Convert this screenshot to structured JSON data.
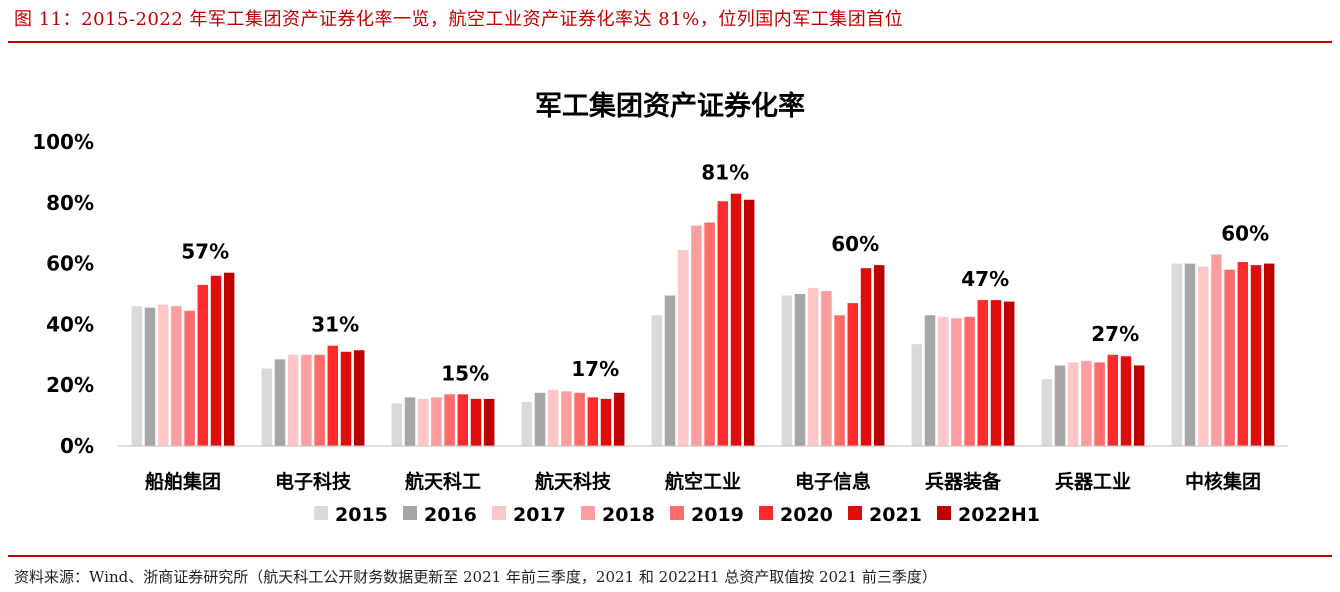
{
  "figure": {
    "title": "图 11：2015-2022 年军工集团资产证券化率一览，航空工业资产证券化率达 81%，位列国内军工集团首位",
    "source": "资料来源：Wind、浙商证券研究所（航天科工公开财务数据更新至 2021 年前三季度，2021 和 2022H1 总资产取值按 2021 前三季度）"
  },
  "chart_data": {
    "type": "bar",
    "title": "军工集团资产证券化率",
    "xlabel": "",
    "ylabel": "",
    "ylim": [
      0,
      100
    ],
    "yticks": [
      "0%",
      "20%",
      "40%",
      "60%",
      "80%",
      "100%"
    ],
    "grid": false,
    "legend_position": "bottom",
    "categories": [
      "船舶集团",
      "电子科技",
      "航天科工",
      "航天科技",
      "航空工业",
      "电子信息",
      "兵器装备",
      "兵器工业",
      "中核集团"
    ],
    "series": [
      {
        "name": "2015",
        "color": "#d9d9d9",
        "values": [
          46,
          25.5,
          14,
          14.5,
          43,
          49.5,
          33.5,
          22,
          60
        ]
      },
      {
        "name": "2016",
        "color": "#a6a6a6",
        "values": [
          45.5,
          28.5,
          16,
          17.5,
          49.5,
          50,
          43,
          26.5,
          60
        ]
      },
      {
        "name": "2017",
        "color": "#ffc7c7",
        "values": [
          46.5,
          30,
          15.5,
          18.5,
          64.5,
          52,
          42.5,
          27.5,
          59
        ]
      },
      {
        "name": "2018",
        "color": "#ff9e9e",
        "values": [
          46,
          30,
          16,
          18,
          72.5,
          51,
          42,
          28,
          63
        ]
      },
      {
        "name": "2019",
        "color": "#ff6b6b",
        "values": [
          44.5,
          30,
          17,
          17.5,
          73.5,
          43,
          42.5,
          27.5,
          58
        ]
      },
      {
        "name": "2020",
        "color": "#ff2a2a",
        "values": [
          53,
          33,
          17,
          16,
          80.5,
          47,
          48,
          30,
          60.5
        ]
      },
      {
        "name": "2021",
        "color": "#e00d0d",
        "values": [
          56,
          31,
          15.5,
          15.5,
          83,
          58.5,
          48,
          29.5,
          59.5
        ]
      },
      {
        "name": "2022H1",
        "color": "#c00000",
        "values": [
          57,
          31.5,
          15.5,
          17.5,
          81,
          59.5,
          47.5,
          26.5,
          60
        ]
      }
    ],
    "data_labels": [
      "57%",
      "31%",
      "15%",
      "17%",
      "81%",
      "60%",
      "47%",
      "27%",
      "60%"
    ]
  }
}
